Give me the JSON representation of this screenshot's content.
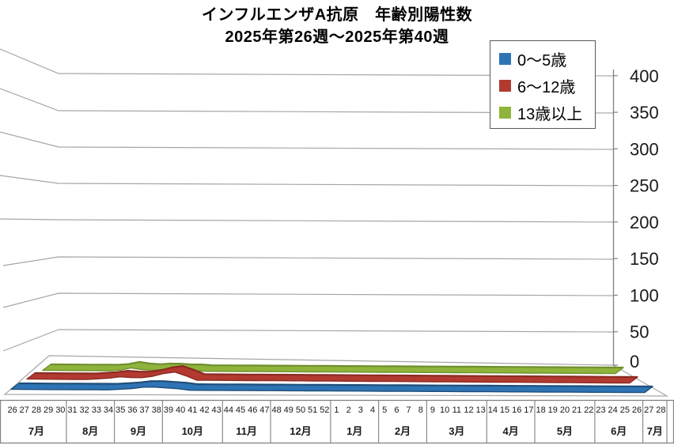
{
  "title": {
    "line1": "インフルエンザA抗原　年齢別陽性数",
    "line2": "2025年第26週～2025年第40週"
  },
  "chart_data": {
    "type": "line",
    "style": "3d-ribbon",
    "title": "インフルエンザA抗原　年齢別陽性数",
    "subtitle": "2025年第26週～2025年第40週",
    "ylabel": "",
    "xlabel": "",
    "ylim": [
      0,
      400
    ],
    "y_ticks": [
      0,
      50,
      100,
      150,
      200,
      250,
      300,
      350,
      400
    ],
    "grid": true,
    "legend_position": "top-right",
    "x_weeks": [
      26,
      27,
      28,
      29,
      30,
      31,
      32,
      33,
      34,
      35,
      36,
      37,
      38,
      39,
      40,
      41,
      42,
      43,
      44,
      45,
      46,
      47,
      48,
      49,
      50,
      51,
      52,
      1,
      2,
      3,
      4,
      5,
      6,
      7,
      8,
      9,
      10,
      11,
      12,
      13,
      14,
      15,
      16,
      17,
      18,
      19,
      20,
      21,
      22,
      23,
      24,
      25,
      26,
      27,
      28
    ],
    "month_groups": [
      {
        "label": "7月",
        "weeks": 5
      },
      {
        "label": "8月",
        "weeks": 4
      },
      {
        "label": "9月",
        "weeks": 4
      },
      {
        "label": "10月",
        "weeks": 5
      },
      {
        "label": "11月",
        "weeks": 4
      },
      {
        "label": "12月",
        "weeks": 5
      },
      {
        "label": "1月",
        "weeks": 4
      },
      {
        "label": "2月",
        "weeks": 4
      },
      {
        "label": "3月",
        "weeks": 5
      },
      {
        "label": "4月",
        "weeks": 4
      },
      {
        "label": "5月",
        "weeks": 5
      },
      {
        "label": "6月",
        "weeks": 4
      },
      {
        "label": "7月",
        "weeks": 2
      }
    ],
    "series": [
      {
        "name": "0～5歳",
        "color": "#2E74B5",
        "edge": "#1F4E79",
        "values": [
          0,
          0,
          0,
          0,
          0,
          0,
          0,
          0,
          0,
          1,
          2,
          4,
          4,
          3,
          2,
          0,
          0,
          0,
          0,
          0,
          0,
          0,
          0,
          0,
          0,
          0,
          0,
          0,
          0,
          0,
          0,
          0,
          0,
          0,
          0,
          0,
          0,
          0,
          0,
          0,
          0,
          0,
          0,
          0,
          0,
          0,
          0,
          0,
          0,
          0,
          0,
          0,
          0,
          0,
          0
        ]
      },
      {
        "name": "6～12歳",
        "color": "#B23A31",
        "edge": "#8C2A22",
        "values": [
          0,
          0,
          0,
          0,
          0,
          0,
          1,
          2,
          4,
          3,
          3,
          5,
          9,
          11,
          6,
          0,
          0,
          0,
          0,
          0,
          0,
          0,
          0,
          0,
          0,
          0,
          0,
          0,
          0,
          0,
          0,
          0,
          0,
          0,
          0,
          0,
          0,
          0,
          0,
          0,
          0,
          0,
          0,
          0,
          0,
          0,
          0,
          0,
          0,
          0,
          0,
          0,
          0,
          0,
          0
        ]
      },
      {
        "name": "13歳以上",
        "color": "#8FB43B",
        "edge": "#6F8F2D",
        "values": [
          0,
          0,
          0,
          0,
          0,
          0,
          0,
          1,
          4,
          2,
          1,
          2,
          2,
          1,
          1,
          0,
          0,
          0,
          0,
          0,
          0,
          0,
          0,
          0,
          0,
          0,
          0,
          0,
          0,
          0,
          0,
          0,
          0,
          0,
          0,
          0,
          0,
          0,
          0,
          0,
          0,
          0,
          0,
          0,
          0,
          0,
          0,
          0,
          0,
          0,
          0,
          0,
          0,
          0,
          0
        ]
      }
    ],
    "colors": {
      "gridline": "#A6A6A6",
      "axis": "#808080",
      "text": "#1A1A1A"
    }
  }
}
